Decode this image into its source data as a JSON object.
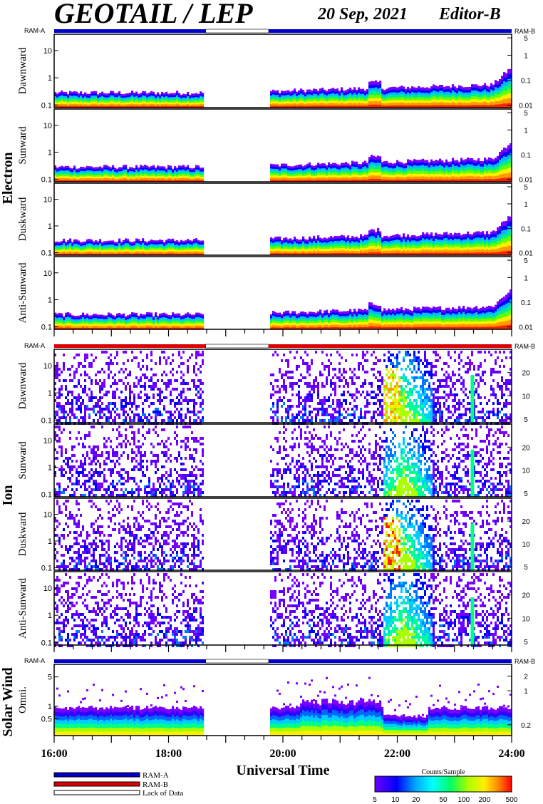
{
  "header": {
    "title": "GEOTAIL / LEP",
    "date": "20 Sep, 2021",
    "editor": "Editor-B"
  },
  "chart_data": {
    "type": "heatmap",
    "xlabel": "Universal Time",
    "x_ticks": [
      "16:00",
      "18:00",
      "20:00",
      "22:00",
      "24:00"
    ],
    "xlim_hours": [
      16,
      24
    ],
    "data_gap_hours": [
      18.65,
      19.75
    ],
    "ram_labels": {
      "left": "RAM-A",
      "right": "RAM-B"
    },
    "groups": [
      {
        "name": "Electron",
        "ram_bar_color": "#0000cc",
        "left_ticks": [
          "10",
          "1",
          "0.1"
        ],
        "left_tick_values": [
          10,
          1,
          0.1
        ],
        "ylim": [
          0.08,
          40
        ],
        "right_ticks": [
          "5",
          "1",
          "0.1",
          "0.01"
        ],
        "right_tick_values": [
          5,
          1,
          0.1,
          0.01
        ],
        "rlim": [
          0.008,
          7
        ],
        "panels": [
          "Dawnward",
          "Sunward",
          "Duskward",
          "Anti-Sunward"
        ]
      },
      {
        "name": "Ion",
        "ram_bar_color": "#dd0000",
        "left_ticks": [
          "10",
          "1",
          "0.1"
        ],
        "left_tick_values": [
          10,
          1,
          0.1
        ],
        "ylim": [
          0.08,
          40
        ],
        "right_ticks": [
          "20",
          "10",
          "5"
        ],
        "right_tick_values": [
          20,
          10,
          5
        ],
        "rlim": [
          4.5,
          40
        ],
        "panels": [
          "Dawnward",
          "Sunward",
          "Duskward",
          "Anti-Sunward"
        ]
      },
      {
        "name": "Solar Wind",
        "ram_bar_color": "#0000cc",
        "left_ticks": [
          "5",
          "1",
          "0.5"
        ],
        "left_tick_values": [
          5,
          1,
          0.5
        ],
        "ylim": [
          0.2,
          10
        ],
        "right_ticks": [
          "2",
          "1",
          "0.2"
        ],
        "right_tick_values": [
          2,
          1,
          0.2
        ],
        "rlim": [
          0.12,
          3.5
        ],
        "panels": [
          "Omni."
        ]
      }
    ],
    "legend": {
      "items": [
        {
          "label": "RAM-A",
          "color": "#0000cc"
        },
        {
          "label": "RAM-B",
          "color": "#dd0000"
        },
        {
          "label": "Lack of Data",
          "color": "#ffffff"
        }
      ]
    },
    "colorbar": {
      "title": "Counts/Sample",
      "ticks": [
        "5",
        "10",
        "20",
        "50",
        "100",
        "200",
        "500"
      ],
      "tick_values": [
        5,
        10,
        20,
        50,
        100,
        200,
        500
      ],
      "range": [
        5,
        500
      ],
      "scale": "log"
    }
  }
}
